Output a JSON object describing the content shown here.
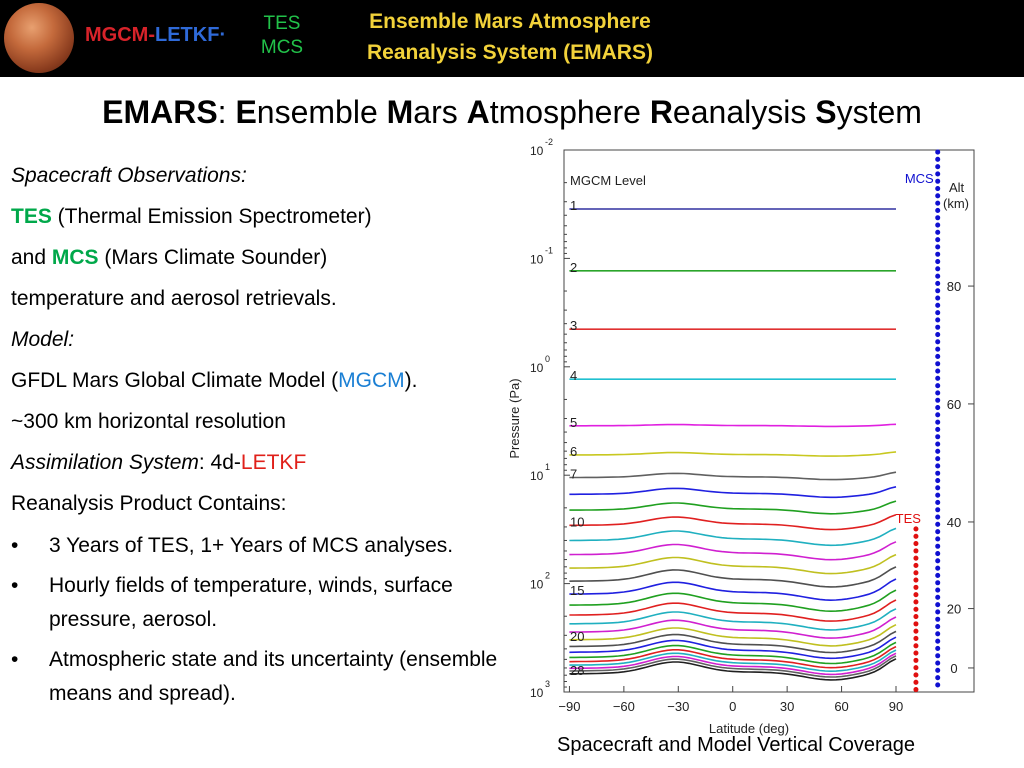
{
  "banner": {
    "logo_mgcm": "MGCM",
    "logo_dash": "-",
    "logo_letkf": "LETKF",
    "logo_dot": "·",
    "tes": "TES",
    "mcs": "MCS",
    "title_line1": "Ensemble Mars Atmosphere",
    "title_line2": "Reanalysis System (EMARS)",
    "colors": {
      "background": "#000000",
      "title": "#f2d23a",
      "mgcm": "#d8232a",
      "letkf": "#2f6ad8",
      "tes_mcs": "#22c24a"
    }
  },
  "title": {
    "emars": "EMARS",
    "colon": ": ",
    "e": "E",
    "e_rest": "nsemble ",
    "m": "M",
    "m_rest": "ars ",
    "a": "A",
    "a_rest": "tmosphere ",
    "r": "R",
    "r_rest": "eanalysis ",
    "s": "S",
    "s_rest": "ystem"
  },
  "content": {
    "observations_heading": "Spacecraft Observations:",
    "tes_label": "TES",
    "tes_desc": " (Thermal Emission Spectrometer)",
    "and": "and ",
    "mcs_label": "MCS",
    "mcs_desc": " (Mars Climate Sounder)",
    "retrievals": "temperature and aerosol retrievals.",
    "model_heading": "Model:",
    "model_pre": "GFDL Mars Global Climate Model (",
    "model_mgcm": "MGCM",
    "model_post": ").",
    "resolution": "~300 km horizontal resolution",
    "assim_heading": "Assimilation System",
    "assim_sep": ": 4d-",
    "assim_letkf": "LETKF",
    "product_heading": "Reanalysis Product Contains:",
    "bullets": [
      "3 Years of TES, 1+ Years of MCS analyses.",
      "Hourly fields of temperature, winds, surface pressure, aerosol.",
      "Atmospheric state and its uncertainty (ensemble means and spread)."
    ],
    "bullet_char": "•",
    "colors": {
      "tes": "#00a84a",
      "mcs": "#00a84a",
      "mgcm": "#1a7fd4",
      "letkf": "#e0201a"
    }
  },
  "chart_data": {
    "type": "line",
    "xlabel": "Latitude (deg)",
    "ylabel": "Pressure (Pa)",
    "right_label": [
      "Alt",
      "(km)"
    ],
    "x_ticks": [
      -90,
      -60,
      -30,
      0,
      30,
      60,
      90
    ],
    "xlim": [
      -93,
      133
    ],
    "y_scale": "log",
    "ylim": [
      0.01,
      1000
    ],
    "y_ticks": [
      {
        "base": "10",
        "exp": "-2",
        "value": 0.01
      },
      {
        "base": "10",
        "exp": "-1",
        "value": 0.1
      },
      {
        "base": "10",
        "exp": "0",
        "value": 1
      },
      {
        "base": "10",
        "exp": "1",
        "value": 10
      },
      {
        "base": "10",
        "exp": "2",
        "value": 100
      },
      {
        "base": "10",
        "exp": "3",
        "value": 1000
      }
    ],
    "alt_ticks": [
      {
        "label": "80",
        "pressure": 0.18
      },
      {
        "label": "60",
        "pressure": 2.2
      },
      {
        "label": "40",
        "pressure": 27
      },
      {
        "label": "20",
        "pressure": 170
      },
      {
        "label": "0",
        "pressure": 600
      }
    ],
    "legend_title": "MGCM Level",
    "level_labels": [
      {
        "text": "1",
        "level": 1
      },
      {
        "text": "2",
        "level": 2
      },
      {
        "text": "3",
        "level": 3
      },
      {
        "text": "4",
        "level": 4
      },
      {
        "text": "5",
        "level": 5
      },
      {
        "text": "6",
        "level": 6
      },
      {
        "text": "7",
        "level": 7
      },
      {
        "text": "10",
        "level": 10
      },
      {
        "text": "15",
        "level": 15
      },
      {
        "text": "20",
        "level": 20
      },
      {
        "text": "28",
        "level": 28
      }
    ],
    "levels": [
      {
        "level": 1,
        "pressure": 0.035,
        "color": "#3030a0",
        "flat": true
      },
      {
        "level": 2,
        "pressure": 0.13,
        "color": "#2aa52a",
        "flat": true
      },
      {
        "level": 3,
        "pressure": 0.45,
        "color": "#e03030",
        "flat": true
      },
      {
        "level": 4,
        "pressure": 1.3,
        "color": "#20c0d0",
        "flat": true
      },
      {
        "level": 5,
        "pressure": 3.5,
        "color": "#e020e0",
        "flat": false,
        "dip": 0.1
      },
      {
        "level": 6,
        "pressure": 6.5,
        "color": "#c8c820",
        "flat": false,
        "dip": 0.2
      },
      {
        "level": 7,
        "pressure": 10.5,
        "color": "#606060",
        "flat": false,
        "dip": 0.35
      },
      {
        "level": 8,
        "pressure": 15,
        "color": "#2020e0",
        "flat": false,
        "dip": 0.5
      },
      {
        "level": 9,
        "pressure": 21,
        "color": "#20a020",
        "flat": false,
        "dip": 0.6
      },
      {
        "level": 10,
        "pressure": 29,
        "color": "#e02020",
        "flat": false,
        "dip": 0.7
      },
      {
        "level": 11,
        "pressure": 40,
        "color": "#20b0c0",
        "flat": false,
        "dip": 0.8
      },
      {
        "level": 12,
        "pressure": 54,
        "color": "#d020d0",
        "flat": false,
        "dip": 0.85
      },
      {
        "level": 13,
        "pressure": 72,
        "color": "#c0c020",
        "flat": false,
        "dip": 0.9
      },
      {
        "level": 14,
        "pressure": 95,
        "color": "#505050",
        "flat": false,
        "dip": 0.95
      },
      {
        "level": 15,
        "pressure": 125,
        "color": "#2020e0",
        "flat": false,
        "dip": 1.0
      },
      {
        "level": 16,
        "pressure": 158,
        "color": "#20a020",
        "flat": false,
        "dip": 1.0
      },
      {
        "level": 17,
        "pressure": 195,
        "color": "#e02020",
        "flat": false,
        "dip": 1.0
      },
      {
        "level": 18,
        "pressure": 235,
        "color": "#20b0c0",
        "flat": false,
        "dip": 1.0
      },
      {
        "level": 19,
        "pressure": 280,
        "color": "#d020d0",
        "flat": false,
        "dip": 1.0
      },
      {
        "level": 20,
        "pressure": 330,
        "color": "#c0c020",
        "flat": false,
        "dip": 1.0
      },
      {
        "level": 21,
        "pressure": 380,
        "color": "#505050",
        "flat": false,
        "dip": 1.0
      },
      {
        "level": 22,
        "pressure": 430,
        "color": "#2020e0",
        "flat": false,
        "dip": 1.0
      },
      {
        "level": 23,
        "pressure": 480,
        "color": "#20a020",
        "flat": false,
        "dip": 1.0
      },
      {
        "level": 24,
        "pressure": 525,
        "color": "#e02020",
        "flat": false,
        "dip": 1.0
      },
      {
        "level": 25,
        "pressure": 565,
        "color": "#20b0c0",
        "flat": false,
        "dip": 1.0
      },
      {
        "level": 26,
        "pressure": 605,
        "color": "#d020d0",
        "flat": false,
        "dip": 1.0
      },
      {
        "level": 27,
        "pressure": 640,
        "color": "#606060",
        "flat": false,
        "dip": 1.0
      },
      {
        "level": 28,
        "pressure": 680,
        "color": "#202020",
        "flat": false,
        "dip": 1.0
      }
    ],
    "instruments": [
      {
        "name": "MCS",
        "x": 113,
        "p_top": 0.01,
        "p_bottom": 1000,
        "color": "#1010d0"
      },
      {
        "name": "TES",
        "x": 101,
        "p_top": 30,
        "p_bottom": 1000,
        "color": "#e01010"
      }
    ]
  },
  "caption": "Spacecraft and Model Vertical Coverage"
}
